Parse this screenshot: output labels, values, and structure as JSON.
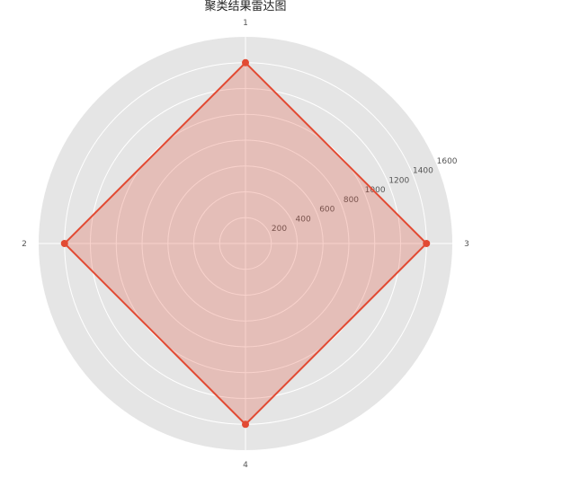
{
  "chart_data": {
    "type": "radar",
    "title": "聚类结果雷达图",
    "axes": [
      "1",
      "2",
      "3",
      "4"
    ],
    "axis_order_clockwise_from_top": [
      "1",
      "3",
      "4",
      "2"
    ],
    "series": [
      {
        "values": [
          1400,
          1400,
          1400,
          1400
        ]
      }
    ],
    "radial_ticks": [
      200,
      400,
      600,
      800,
      1000,
      1200,
      1400,
      1600
    ],
    "rlim": [
      0,
      1600
    ],
    "grid": true,
    "colors": {
      "series_line": "#e24a33",
      "series_fill": "#e24a33",
      "background": "#e5e5e5",
      "grid": "#ffffff"
    }
  }
}
